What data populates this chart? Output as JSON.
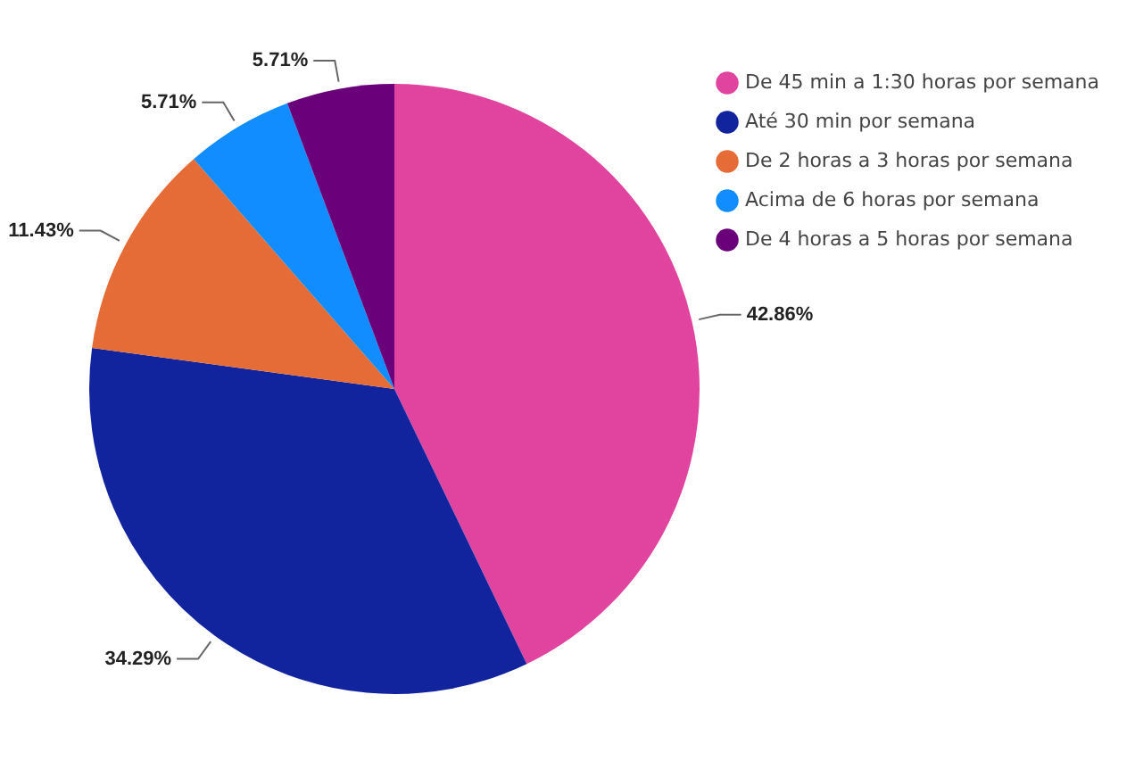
{
  "chart_data": {
    "type": "pie",
    "categories": [
      "De 45 min a 1:30 horas por semana",
      "Até 30 min por semana",
      "De 2 horas a 3 horas por semana",
      "Acima de 6 horas por semana",
      "De 4 horas a 5 horas por semana"
    ],
    "values": [
      42.86,
      34.29,
      11.43,
      5.71,
      5.71
    ],
    "value_labels": [
      "42.86%",
      "34.29%",
      "11.43%",
      "5.71%",
      "5.71%"
    ],
    "colors": [
      "#e0449e",
      "#12239e",
      "#e66c37",
      "#118dff",
      "#6b007b"
    ],
    "legend": "top right"
  }
}
